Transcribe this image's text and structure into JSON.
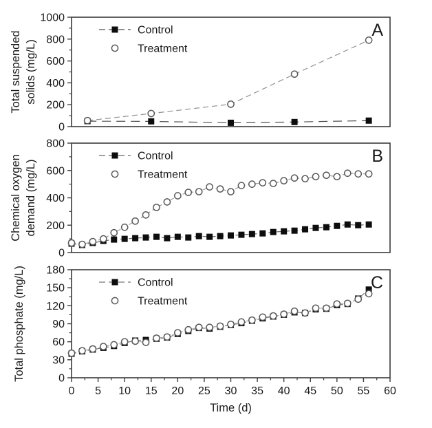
{
  "figure": {
    "background": "#ffffff",
    "frame_color": "#3a3a3a",
    "text_color": "#1a1a1a",
    "xlabel": "Time (d)",
    "xlim": [
      0,
      60
    ],
    "xticks": [
      0,
      5,
      10,
      15,
      20,
      25,
      30,
      35,
      40,
      45,
      50,
      55,
      60
    ],
    "x_minor_step": 2.5,
    "legend_labels": [
      "Control",
      "Treatment"
    ]
  },
  "chart_data": [
    {
      "type": "line",
      "panel_label": "A",
      "ylabel_lines": [
        "Total suspended",
        "solids (mg/L)"
      ],
      "ylim": [
        0,
        1000
      ],
      "yticks": [
        0,
        200,
        400,
        600,
        800,
        1000
      ],
      "grid": false,
      "legend_position": "top-left",
      "series": [
        {
          "name": "Control",
          "marker": "square-filled",
          "marker_color": "#0d0d0d",
          "line_color": "#4d4d4d",
          "dash": "13 8",
          "x": [
            3,
            15,
            30,
            42,
            56
          ],
          "y": [
            50,
            48,
            35,
            42,
            55
          ]
        },
        {
          "name": "Treatment",
          "marker": "circle-open",
          "marker_color": "#5a5a5a",
          "line_color": "#909090",
          "dash": "8 5",
          "x": [
            3,
            15,
            30,
            42,
            56
          ],
          "y": [
            55,
            120,
            205,
            480,
            790
          ]
        }
      ]
    },
    {
      "type": "line",
      "panel_label": "B",
      "ylabel_lines": [
        "Chemical oxygen",
        "demand (mg/L)"
      ],
      "ylim": [
        0,
        800
      ],
      "yticks": [
        0,
        200,
        400,
        600,
        800
      ],
      "grid": false,
      "legend_position": "top-left",
      "series": [
        {
          "name": "Control",
          "marker": "square-filled",
          "marker_color": "#0d0d0d",
          "line_color": "#666666",
          "dash": "7 5",
          "x": [
            0,
            2,
            4,
            6,
            8,
            10,
            12,
            14,
            16,
            18,
            20,
            22,
            24,
            26,
            28,
            30,
            32,
            34,
            36,
            38,
            40,
            42,
            44,
            46,
            48,
            50,
            52,
            54,
            56
          ],
          "y": [
            65,
            55,
            70,
            85,
            95,
            100,
            105,
            110,
            115,
            105,
            115,
            110,
            120,
            115,
            120,
            125,
            130,
            135,
            140,
            150,
            155,
            160,
            170,
            180,
            185,
            195,
            205,
            200,
            205
          ]
        },
        {
          "name": "Treatment",
          "marker": "circle-open",
          "marker_color": "#5a5a5a",
          "line_color": "#999999",
          "dash": "6 4",
          "x": [
            0,
            2,
            4,
            6,
            8,
            10,
            12,
            14,
            16,
            18,
            20,
            22,
            24,
            26,
            28,
            30,
            32,
            34,
            36,
            38,
            40,
            42,
            44,
            46,
            48,
            50,
            52,
            54,
            56
          ],
          "y": [
            70,
            60,
            80,
            100,
            145,
            185,
            230,
            275,
            330,
            370,
            415,
            440,
            445,
            480,
            465,
            445,
            490,
            500,
            510,
            505,
            525,
            545,
            540,
            555,
            565,
            555,
            580,
            575,
            575
          ]
        }
      ]
    },
    {
      "type": "line",
      "panel_label": "C",
      "ylabel_lines": [
        "Total phosphate (mg/L)"
      ],
      "ylim": [
        0,
        180
      ],
      "yticks": [
        0,
        30,
        60,
        90,
        120,
        150,
        180
      ],
      "grid": false,
      "legend_position": "top-left",
      "series": [
        {
          "name": "Control",
          "marker": "square-filled",
          "marker_color": "#0d0d0d",
          "line_color": "#777777",
          "dash": "7 5",
          "x": [
            0,
            2,
            4,
            6,
            8,
            10,
            12,
            14,
            16,
            18,
            20,
            22,
            24,
            26,
            28,
            30,
            32,
            34,
            36,
            38,
            40,
            42,
            44,
            46,
            48,
            50,
            52,
            54,
            56
          ],
          "y": [
            40,
            44,
            47,
            50,
            53,
            58,
            62,
            63,
            65,
            67,
            73,
            78,
            83,
            82,
            85,
            88,
            91,
            95,
            99,
            102,
            105,
            109,
            108,
            114,
            115,
            121,
            123,
            132,
            147
          ]
        },
        {
          "name": "Treatment",
          "marker": "circle-open",
          "marker_color": "#5a5a5a",
          "line_color": "#aaaaaa",
          "dash": "6 4",
          "x": [
            0,
            2,
            4,
            6,
            8,
            10,
            12,
            14,
            16,
            18,
            20,
            22,
            24,
            26,
            28,
            30,
            32,
            34,
            36,
            38,
            40,
            42,
            44,
            46,
            48,
            50,
            52,
            54,
            56
          ],
          "y": [
            41,
            45,
            48,
            52,
            55,
            60,
            61,
            59,
            66,
            68,
            75,
            80,
            84,
            84,
            86,
            89,
            93,
            96,
            101,
            103,
            106,
            111,
            108,
            116,
            116,
            123,
            124,
            131,
            140
          ]
        }
      ]
    }
  ]
}
